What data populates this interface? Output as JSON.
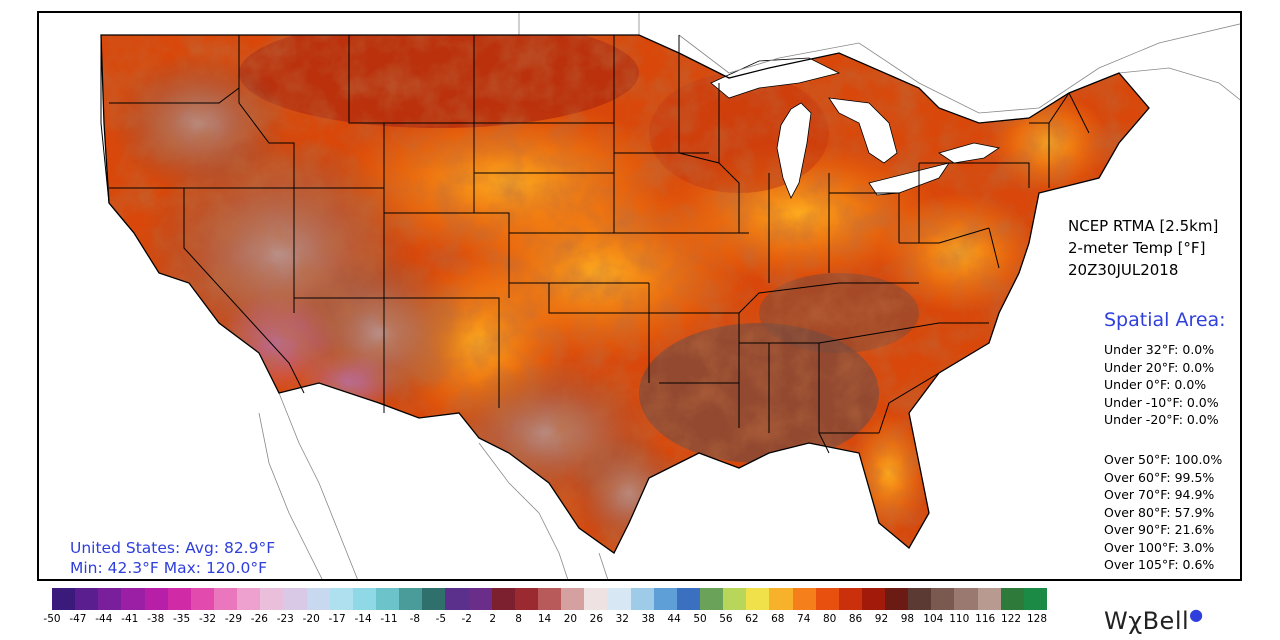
{
  "product": {
    "model": "NCEP RTMA [2.5km]",
    "variable": "2-meter Temp [°F]",
    "valid_time": "20Z30JUL2018"
  },
  "spatial_area": {
    "title": "Spatial Area:",
    "under": [
      "Under 32°F: 0.0%",
      "Under 20°F: 0.0%",
      "Under 0°F: 0.0%",
      "Under -10°F: 0.0%",
      "Under -20°F: 0.0%"
    ],
    "over": [
      "Over 50°F: 100.0%",
      "Over 60°F: 99.5%",
      "Over 70°F: 94.9%",
      "Over 80°F: 57.9%",
      "Over 90°F: 21.6%",
      "Over 100°F: 3.0%",
      "Over 105°F: 0.6%"
    ]
  },
  "summary": {
    "line1": "United States: Avg:  82.9°F",
    "line2": "Min:  42.3°F Max: 120.0°F"
  },
  "colorbar": {
    "labels": [
      "-50",
      "-47",
      "-44",
      "-41",
      "-38",
      "-35",
      "-32",
      "-29",
      "-26",
      "-23",
      "-20",
      "-17",
      "-14",
      "-11",
      "-8",
      "-5",
      "-2",
      "2",
      "8",
      "14",
      "20",
      "26",
      "32",
      "38",
      "44",
      "50",
      "56",
      "62",
      "68",
      "74",
      "80",
      "86",
      "92",
      "98",
      "104",
      "110",
      "116",
      "122",
      "128"
    ],
    "colors": [
      "#3a1a7a",
      "#5a1e8e",
      "#7a1f9b",
      "#9a1fa5",
      "#b81fa8",
      "#d02aa6",
      "#e24aae",
      "#ea76bd",
      "#eea0cf",
      "#e9bfdc",
      "#d9c8e6",
      "#c8d8ef",
      "#aee0f0",
      "#8fd9e6",
      "#6cc3c9",
      "#4a9c9a",
      "#2f6f6c",
      "#5b2f8c",
      "#6b2d8a",
      "#7c2030",
      "#9a2a2f",
      "#b85a5a",
      "#d5a0a0",
      "#efe2e2",
      "#d7e7f3",
      "#9ecbe8",
      "#5d9fd6",
      "#3b6fc0",
      "#6aa25a",
      "#b8d65a",
      "#f0e04a",
      "#f7b12b",
      "#f57f1a",
      "#e85010",
      "#c9300b",
      "#a11a0a",
      "#6b1a14",
      "#5a3a32",
      "#7a5a50",
      "#9a7a70",
      "#b89a90",
      "#2e7a3a",
      "#1a8a44"
    ]
  },
  "brand": "WχBell"
}
